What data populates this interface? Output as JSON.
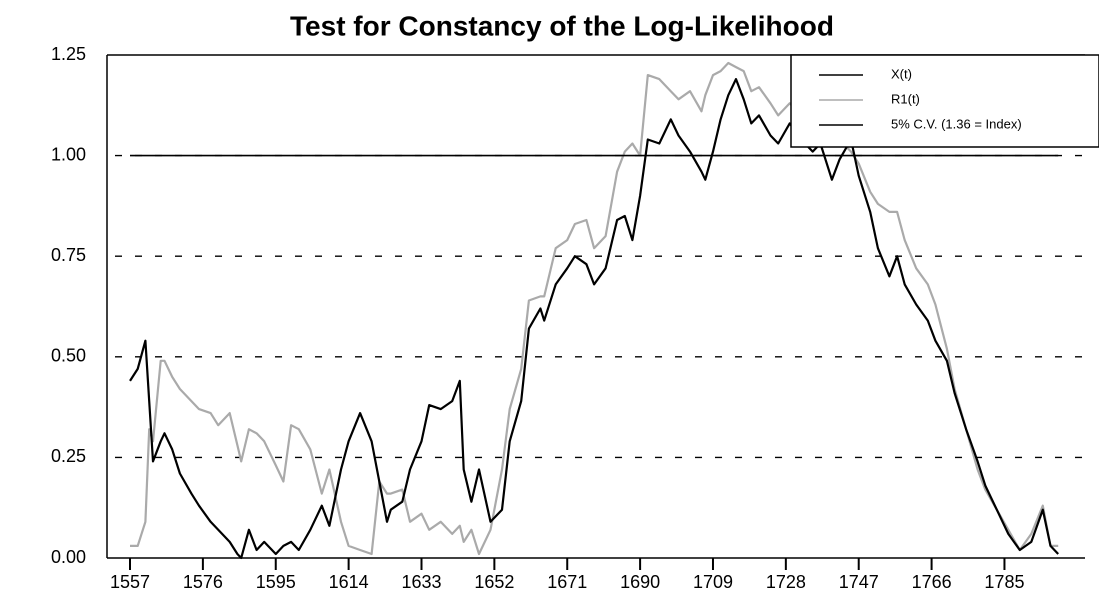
{
  "chart_data": {
    "type": "line",
    "title": "Test for Constancy of the Log-Likelihood",
    "x": [
      1557,
      1559,
      1561,
      1562,
      1563,
      1565,
      1566,
      1568,
      1570,
      1573,
      1575,
      1578,
      1580,
      1583,
      1585,
      1586,
      1588,
      1590,
      1592,
      1595,
      1597,
      1599,
      1601,
      1604,
      1607,
      1609,
      1612,
      1614,
      1617,
      1620,
      1622,
      1624,
      1625,
      1628,
      1630,
      1633,
      1635,
      1638,
      1641,
      1643,
      1644,
      1646,
      1648,
      1651,
      1654,
      1656,
      1659,
      1661,
      1664,
      1665,
      1668,
      1671,
      1673,
      1676,
      1678,
      1681,
      1684,
      1686,
      1688,
      1690,
      1692,
      1695,
      1698,
      1700,
      1703,
      1706,
      1707,
      1709,
      1711,
      1713,
      1715,
      1717,
      1719,
      1721,
      1724,
      1726,
      1729,
      1732,
      1735,
      1737,
      1740,
      1742,
      1745,
      1747,
      1750,
      1752,
      1755,
      1757,
      1759,
      1762,
      1765,
      1767,
      1770,
      1772,
      1775,
      1778,
      1780,
      1783,
      1786,
      1789,
      1792,
      1795,
      1797,
      1799
    ],
    "series": [
      {
        "name": "X(t)",
        "color": "#000000",
        "width": 2.2,
        "values": [
          0.44,
          0.47,
          0.54,
          0.39,
          0.24,
          0.29,
          0.31,
          0.27,
          0.21,
          0.16,
          0.13,
          0.09,
          0.07,
          0.04,
          0.01,
          0,
          0.07,
          0.02,
          0.04,
          0.01,
          0.03,
          0.04,
          0.02,
          0.07,
          0.13,
          0.08,
          0.22,
          0.29,
          0.36,
          0.29,
          0.19,
          0.09,
          0.12,
          0.14,
          0.22,
          0.29,
          0.38,
          0.37,
          0.39,
          0.44,
          0.22,
          0.14,
          0.22,
          0.09,
          0.12,
          0.29,
          0.39,
          0.57,
          0.62,
          0.59,
          0.68,
          0.72,
          0.75,
          0.73,
          0.68,
          0.72,
          0.84,
          0.85,
          0.79,
          0.9,
          1.04,
          1.03,
          1.09,
          1.05,
          1.01,
          0.96,
          0.94,
          1.01,
          1.09,
          1.15,
          1.19,
          1.14,
          1.08,
          1.1,
          1.05,
          1.03,
          1.08,
          1.04,
          1.01,
          1.03,
          0.94,
          0.99,
          1.04,
          0.95,
          0.86,
          0.77,
          0.7,
          0.75,
          0.68,
          0.63,
          0.59,
          0.54,
          0.49,
          0.41,
          0.32,
          0.24,
          0.18,
          0.12,
          0.06,
          0.02,
          0.04,
          0.12,
          0.03,
          0.01
        ]
      },
      {
        "name": "R1(t)",
        "color": "#aaaaaa",
        "width": 2.2,
        "values": [
          0.03,
          0.03,
          0.09,
          0.32,
          0.29,
          0.49,
          0.49,
          0.45,
          0.42,
          0.39,
          0.37,
          0.36,
          0.33,
          0.36,
          0.28,
          0.24,
          0.32,
          0.31,
          0.29,
          0.23,
          0.19,
          0.33,
          0.32,
          0.27,
          0.16,
          0.22,
          0.09,
          0.03,
          0.02,
          0.01,
          0.19,
          0.16,
          0.16,
          0.17,
          0.09,
          0.11,
          0.07,
          0.09,
          0.06,
          0.08,
          0.04,
          0.07,
          0.01,
          0.07,
          0.22,
          0.37,
          0.47,
          0.64,
          0.65,
          0.65,
          0.77,
          0.79,
          0.83,
          0.84,
          0.77,
          0.8,
          0.96,
          1.01,
          1.03,
          1,
          1.2,
          1.19,
          1.16,
          1.14,
          1.16,
          1.11,
          1.15,
          1.2,
          1.21,
          1.23,
          1.22,
          1.21,
          1.16,
          1.17,
          1.13,
          1.1,
          1.13,
          1.1,
          1.09,
          1.06,
          1.09,
          1.04,
          1.01,
          0.98,
          0.91,
          0.88,
          0.86,
          0.86,
          0.79,
          0.72,
          0.68,
          0.63,
          0.52,
          0.42,
          0.32,
          0.22,
          0.17,
          0.12,
          0.07,
          0.02,
          0.06,
          0.13,
          0.03,
          0.03
        ]
      },
      {
        "name": "5% C.V. (1.36 = Index)",
        "color": "#000000",
        "width": 1.6,
        "x": [
          1557,
          1799
        ],
        "values": [
          1,
          1
        ]
      }
    ],
    "xlim": [
      1551,
      1806
    ],
    "ylim": [
      0,
      1.25
    ],
    "xticks": [
      1557,
      1576,
      1595,
      1614,
      1633,
      1652,
      1671,
      1690,
      1709,
      1728,
      1747,
      1766,
      1785
    ],
    "yticks": [
      {
        "value": 0,
        "label": "0.00"
      },
      {
        "value": 0.25,
        "label": "0.25"
      },
      {
        "value": 0.5,
        "label": "0.50"
      },
      {
        "value": 0.75,
        "label": "0.75"
      },
      {
        "value": 1,
        "label": "1.00"
      },
      {
        "value": 1.25,
        "label": "1.25"
      }
    ],
    "grid": true,
    "legend": "upper right"
  }
}
